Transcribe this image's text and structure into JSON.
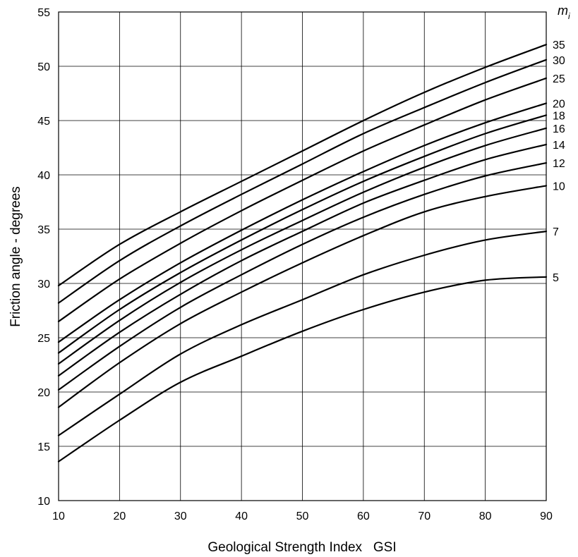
{
  "chart_data": {
    "type": "line",
    "xlabel": "Geological Strength Index   GSI",
    "ylabel": "Friction angle - degrees",
    "xlim": [
      10,
      90
    ],
    "ylim": [
      10,
      55
    ],
    "x_ticks": [
      10,
      20,
      30,
      40,
      50,
      60,
      70,
      80,
      90
    ],
    "y_ticks": [
      10,
      15,
      20,
      25,
      30,
      35,
      40,
      45,
      50,
      55
    ],
    "grid": true,
    "legend_title": {
      "base": "m",
      "subscript": "i"
    },
    "x": [
      10,
      20,
      30,
      40,
      50,
      60,
      70,
      80,
      90
    ],
    "series": [
      {
        "name": "35",
        "values": [
          29.8,
          33.6,
          36.6,
          39.4,
          42.2,
          45.0,
          47.6,
          49.9,
          52.0
        ]
      },
      {
        "name": "30",
        "values": [
          28.2,
          32.1,
          35.3,
          38.2,
          41.0,
          43.8,
          46.2,
          48.5,
          50.6
        ]
      },
      {
        "name": "25",
        "values": [
          26.5,
          30.4,
          33.7,
          36.7,
          39.5,
          42.2,
          44.6,
          46.9,
          48.9
        ]
      },
      {
        "name": "20",
        "values": [
          24.6,
          28.5,
          31.9,
          34.9,
          37.7,
          40.3,
          42.7,
          44.8,
          46.6
        ]
      },
      {
        "name": "18",
        "values": [
          23.6,
          27.6,
          31.0,
          34.0,
          36.8,
          39.4,
          41.7,
          43.8,
          45.5
        ]
      },
      {
        "name": "16",
        "values": [
          22.6,
          26.6,
          30.1,
          33.1,
          35.8,
          38.4,
          40.7,
          42.7,
          44.3
        ]
      },
      {
        "name": "14",
        "values": [
          21.5,
          25.5,
          29.0,
          32.1,
          34.8,
          37.4,
          39.5,
          41.4,
          42.8
        ]
      },
      {
        "name": "12",
        "values": [
          20.2,
          24.2,
          27.8,
          30.8,
          33.6,
          36.1,
          38.2,
          39.9,
          41.1
        ]
      },
      {
        "name": "10",
        "values": [
          18.6,
          22.7,
          26.3,
          29.2,
          31.9,
          34.4,
          36.6,
          38.0,
          39.0
        ]
      },
      {
        "name": "7",
        "values": [
          16.0,
          19.8,
          23.5,
          26.2,
          28.5,
          30.8,
          32.6,
          34.0,
          34.8
        ]
      },
      {
        "name": "5",
        "values": [
          13.6,
          17.4,
          20.9,
          23.3,
          25.6,
          27.6,
          29.2,
          30.3,
          30.6
        ]
      }
    ]
  }
}
